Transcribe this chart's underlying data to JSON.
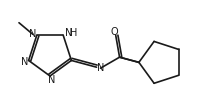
{
  "bg_color": "#ffffff",
  "line_color": "#1a1a1a",
  "lw": 1.2,
  "fs": 7.0,
  "tcx": 0.26,
  "tcy": 0.5,
  "r_tet": 0.13,
  "cpcx": 0.8,
  "cpcy": 0.5,
  "r_cp": 0.155,
  "tet_angles": [
    126,
    54,
    -18,
    -90,
    -162
  ],
  "methyl_label": "N",
  "nh_label": "NH",
  "n3_label": "N",
  "n4_label": "N",
  "imine_label": "N",
  "o_label": "O"
}
